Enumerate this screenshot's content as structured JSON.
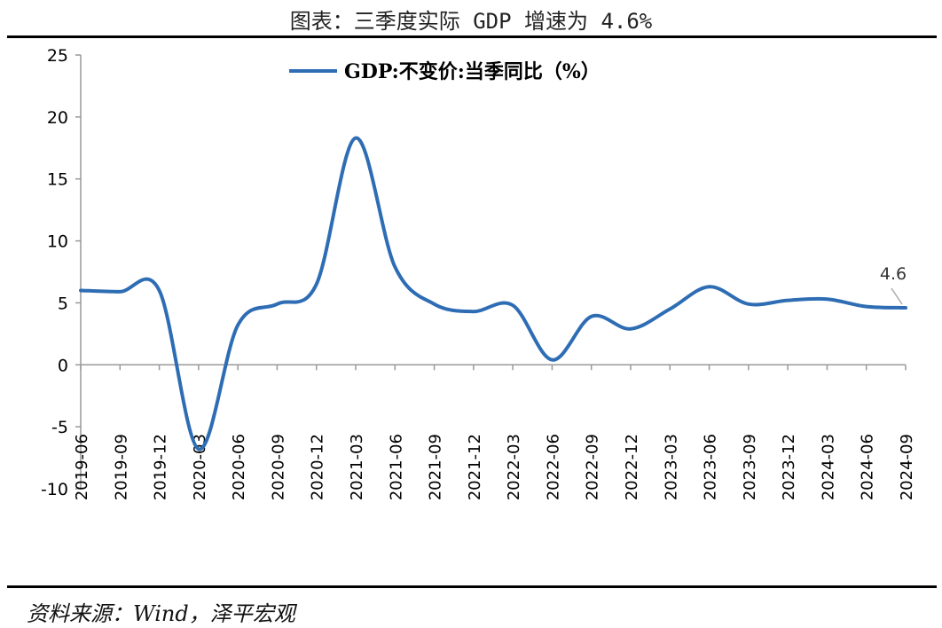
{
  "header": {
    "title": "图表：三季度实际 GDP 增速为 4.6%"
  },
  "footer": {
    "source": "资料来源：Wind，泽平宏观"
  },
  "chart_data": {
    "type": "line",
    "title": "图表：三季度实际 GDP 增速为 4.6%",
    "xlabel": "",
    "ylabel": "",
    "ylim": [
      -10,
      25
    ],
    "yticks": [
      "25",
      "20",
      "15",
      "10",
      "5",
      "0",
      "-5",
      "-10"
    ],
    "grid": false,
    "legend": "top-center",
    "categories": [
      "2019-06",
      "2019-09",
      "2019-12",
      "2020-03",
      "2020-06",
      "2020-09",
      "2020-12",
      "2021-03",
      "2021-06",
      "2021-09",
      "2021-12",
      "2022-03",
      "2022-06",
      "2022-09",
      "2022-12",
      "2023-03",
      "2023-06",
      "2023-09",
      "2023-12",
      "2024-03",
      "2024-06",
      "2024-09"
    ],
    "series": [
      {
        "name": "GDP:不变价:当季同比（%）",
        "color": "#2E6DB4",
        "values": [
          6.0,
          5.9,
          6.0,
          -6.8,
          3.2,
          4.9,
          6.5,
          18.3,
          7.9,
          4.9,
          4.3,
          4.8,
          0.4,
          3.9,
          2.9,
          4.5,
          6.3,
          4.9,
          5.2,
          5.3,
          4.7,
          4.6
        ]
      }
    ],
    "annotations": [
      {
        "category": "2024-09",
        "value": 4.6,
        "label": "4.6"
      }
    ]
  }
}
